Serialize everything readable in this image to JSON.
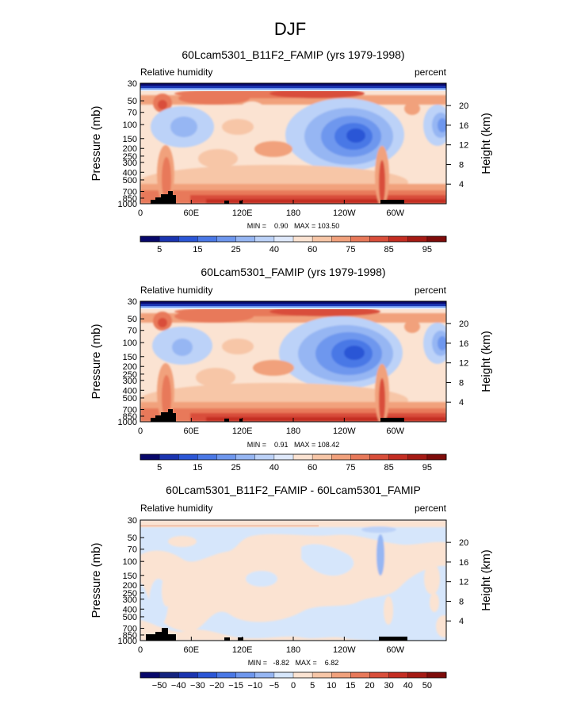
{
  "figure_title": "DJF",
  "chart_data": [
    {
      "type": "heatmap",
      "title": "60Lcam5301_B11F2_FAMIP (yrs 1979-1998)",
      "left_label": "Relative humidity",
      "right_label": "percent",
      "xlabel": "",
      "ylabel": "Pressure (mb)",
      "ylabel_right": "Height (km)",
      "x_ticks": [
        "0",
        "60E",
        "120E",
        "180",
        "120W",
        "60W"
      ],
      "x_tick_values": [
        0,
        60,
        120,
        180,
        240,
        300
      ],
      "xlim": [
        0,
        360
      ],
      "y_ticks": [
        "30",
        "50",
        "70",
        "100",
        "150",
        "200",
        "250",
        "300",
        "400",
        "500",
        "700",
        "850",
        "1000"
      ],
      "y_tick_values": [
        30,
        50,
        70,
        100,
        150,
        200,
        250,
        300,
        400,
        500,
        700,
        850,
        1000
      ],
      "ylim": [
        30,
        1000
      ],
      "height_ticks": [
        "4",
        "8",
        "12",
        "16",
        "20"
      ],
      "height_tick_values": [
        4,
        8,
        12,
        16,
        20
      ],
      "stats_text": "MIN =    0.90   MAX = 103.50",
      "min": 0.9,
      "max": 103.5,
      "colorbar_labels": [
        "5",
        "15",
        "25",
        "40",
        "60",
        "75",
        "85",
        "95"
      ]
    },
    {
      "type": "heatmap",
      "title": "60Lcam5301_FAMIP (yrs 1979-1998)",
      "left_label": "Relative humidity",
      "right_label": "percent",
      "xlabel": "",
      "ylabel": "Pressure (mb)",
      "ylabel_right": "Height (km)",
      "x_ticks": [
        "0",
        "60E",
        "120E",
        "180",
        "120W",
        "60W"
      ],
      "x_tick_values": [
        0,
        60,
        120,
        180,
        240,
        300
      ],
      "xlim": [
        0,
        360
      ],
      "y_ticks": [
        "30",
        "50",
        "70",
        "100",
        "150",
        "200",
        "250",
        "300",
        "400",
        "500",
        "700",
        "850",
        "1000"
      ],
      "y_tick_values": [
        30,
        50,
        70,
        100,
        150,
        200,
        250,
        300,
        400,
        500,
        700,
        850,
        1000
      ],
      "ylim": [
        30,
        1000
      ],
      "height_ticks": [
        "4",
        "8",
        "12",
        "16",
        "20"
      ],
      "height_tick_values": [
        4,
        8,
        12,
        16,
        20
      ],
      "stats_text": "MIN =    0.91   MAX = 108.42",
      "min": 0.91,
      "max": 108.42,
      "colorbar_labels": [
        "5",
        "15",
        "25",
        "40",
        "60",
        "75",
        "85",
        "95"
      ]
    },
    {
      "type": "heatmap",
      "title": "60Lcam5301_B11F2_FAMIP - 60Lcam5301_FAMIP",
      "left_label": "Relative humidity",
      "right_label": "percent",
      "xlabel": "",
      "ylabel": "Pressure (mb)",
      "ylabel_right": "Height (km)",
      "x_ticks": [
        "0",
        "60E",
        "120E",
        "180",
        "120W",
        "60W"
      ],
      "x_tick_values": [
        0,
        60,
        120,
        180,
        240,
        300
      ],
      "xlim": [
        0,
        360
      ],
      "y_ticks": [
        "30",
        "50",
        "70",
        "100",
        "150",
        "200",
        "250",
        "300",
        "400",
        "500",
        "700",
        "850",
        "1000"
      ],
      "y_tick_values": [
        30,
        50,
        70,
        100,
        150,
        200,
        250,
        300,
        400,
        500,
        700,
        850,
        1000
      ],
      "ylim": [
        30,
        1000
      ],
      "height_ticks": [
        "4",
        "8",
        "12",
        "16",
        "20"
      ],
      "height_tick_values": [
        4,
        8,
        12,
        16,
        20
      ],
      "stats_text": "MIN =   -8.82   MAX =    6.82",
      "min": -8.82,
      "max": 6.82,
      "colorbar_labels": [
        "−50",
        "−40",
        "−30",
        "−20",
        "−15",
        "−10",
        "−5",
        "0",
        "5",
        "10",
        "15",
        "20",
        "30",
        "40",
        "50"
      ]
    }
  ],
  "colors": {
    "rh_scale": [
      "#08086a",
      "#1a34b0",
      "#2b56d6",
      "#4a78e6",
      "#6e97ee",
      "#96b6f3",
      "#bcd2f8",
      "#dfe9fb",
      "#fbe3d2",
      "#f7c6a7",
      "#f1a17c",
      "#e8795a",
      "#d94e3a",
      "#c42d22",
      "#a51a14",
      "#7e0c0a"
    ],
    "diff_scale": [
      "#08086a",
      "#14237f",
      "#1a34b0",
      "#2b56d6",
      "#4a78e6",
      "#6e97ee",
      "#96b6f3",
      "#d6e6fb",
      "#fbe3d2",
      "#f7c6a7",
      "#f1a17c",
      "#e8795a",
      "#d94e3a",
      "#c42d22",
      "#a51a14",
      "#7e0c0a"
    ],
    "topography": "#000000"
  }
}
